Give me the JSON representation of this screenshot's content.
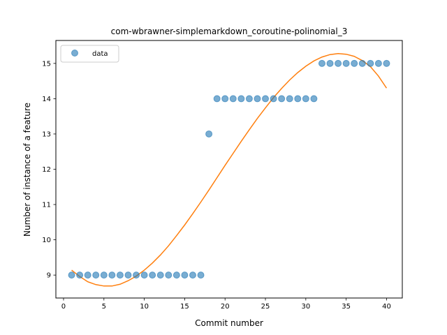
{
  "chart_data": {
    "type": "scatter",
    "title": "com-wbrawner-simplemarkdown_coroutine-polinomial_3",
    "xlabel": "Commit number",
    "ylabel": "Number of instance of a feature",
    "xlim": [
      -0.95,
      41.95
    ],
    "ylim": [
      8.35,
      15.65
    ],
    "xticks": [
      0,
      5,
      10,
      15,
      20,
      25,
      30,
      35,
      40
    ],
    "yticks": [
      9,
      10,
      11,
      12,
      13,
      14,
      15
    ],
    "legend_position": "upper-left",
    "series": [
      {
        "name": "data",
        "kind": "scatter",
        "color": "#1f77b4",
        "x": [
          1,
          2,
          3,
          4,
          5,
          6,
          7,
          8,
          9,
          10,
          11,
          12,
          13,
          14,
          15,
          16,
          17,
          18,
          19,
          20,
          21,
          22,
          23,
          24,
          25,
          26,
          27,
          28,
          29,
          30,
          31,
          32,
          33,
          34,
          35,
          36,
          37,
          38,
          39,
          40
        ],
        "y": [
          9,
          9,
          9,
          9,
          9,
          9,
          9,
          9,
          9,
          9,
          9,
          9,
          9,
          9,
          9,
          9,
          9,
          13,
          14,
          14,
          14,
          14,
          14,
          14,
          14,
          14,
          14,
          14,
          14,
          14,
          14,
          15,
          15,
          15,
          15,
          15,
          15,
          15,
          15,
          15
        ]
      },
      {
        "kind": "line",
        "color": "#ff7f0e",
        "x": [
          1,
          2,
          3,
          4,
          5,
          6,
          7,
          8,
          9,
          10,
          11,
          12,
          13,
          14,
          15,
          16,
          17,
          18,
          19,
          20,
          21,
          22,
          23,
          24,
          25,
          26,
          27,
          28,
          29,
          30,
          31,
          32,
          33,
          34,
          35,
          36,
          37,
          38,
          39,
          40
        ],
        "y": [
          9.14,
          8.96,
          8.81,
          8.73,
          8.69,
          8.69,
          8.74,
          8.84,
          8.97,
          9.14,
          9.34,
          9.57,
          9.83,
          10.12,
          10.42,
          10.74,
          11.07,
          11.41,
          11.76,
          12.11,
          12.45,
          12.79,
          13.12,
          13.44,
          13.74,
          14.03,
          14.29,
          14.53,
          14.74,
          14.92,
          15.07,
          15.18,
          15.25,
          15.28,
          15.26,
          15.2,
          15.08,
          14.91,
          14.64,
          14.3
        ]
      }
    ]
  }
}
